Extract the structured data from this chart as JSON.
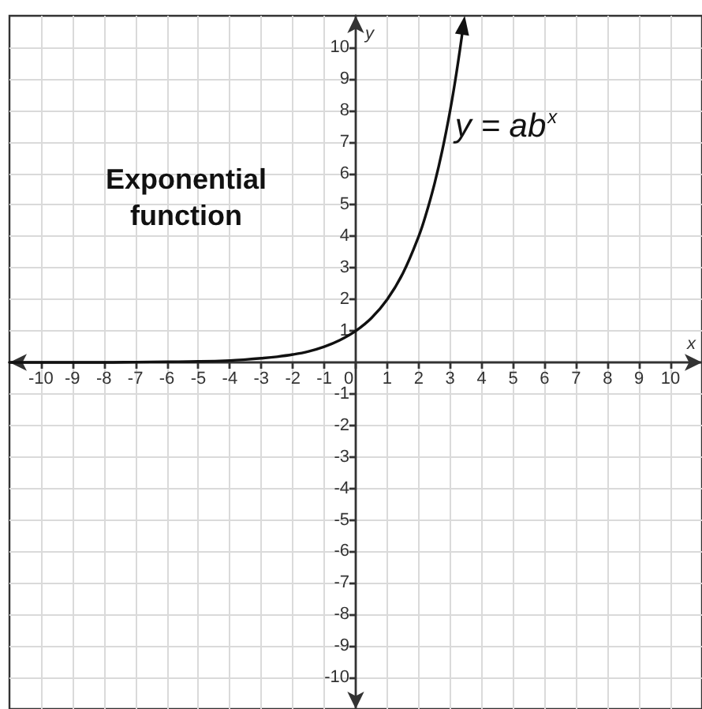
{
  "chart_data": {
    "type": "line",
    "title": "Exponential function",
    "xlabel": "x",
    "ylabel": "y",
    "xlim": [
      -11,
      11
    ],
    "ylim": [
      -11,
      11
    ],
    "xticks": [
      -10,
      -9,
      -8,
      -7,
      -6,
      -5,
      -4,
      -3,
      -2,
      -1,
      0,
      1,
      2,
      3,
      4,
      5,
      6,
      7,
      8,
      9,
      10
    ],
    "yticks": [
      -10,
      -9,
      -8,
      -7,
      -6,
      -5,
      -4,
      -3,
      -2,
      -1,
      1,
      2,
      3,
      4,
      5,
      6,
      7,
      8,
      9,
      10
    ],
    "grid": true,
    "series": [
      {
        "name": "y = ab$^{x}$",
        "color": "#111111",
        "x": [
          -11,
          -10,
          -9,
          -8,
          -7,
          -6,
          -5,
          -4,
          -3.5,
          -3,
          -2.5,
          -2,
          -1.5,
          -1,
          -0.5,
          0,
          0.5,
          1,
          1.5,
          2,
          2.25,
          2.5,
          2.75,
          3,
          3.2,
          3.42
        ],
        "values": [
          0,
          0,
          0,
          0,
          0.01,
          0.02,
          0.03,
          0.06,
          0.09,
          0.13,
          0.18,
          0.25,
          0.35,
          0.5,
          0.71,
          1,
          1.41,
          2,
          2.83,
          4,
          4.76,
          5.66,
          6.73,
          8,
          9.19,
          10.7
        ]
      }
    ]
  }
}
